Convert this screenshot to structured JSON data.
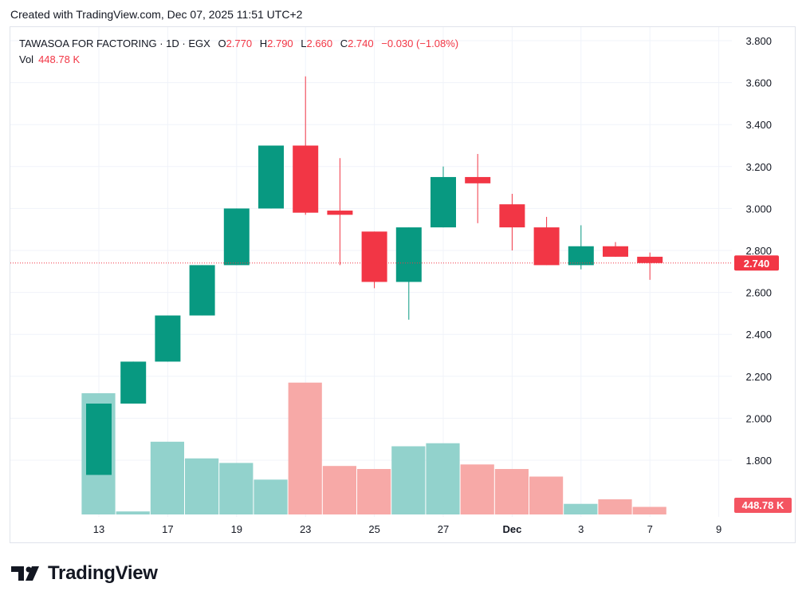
{
  "header": {
    "created_text": "Created with TradingView.com, Dec 07, 2025 11:51 UTC+2"
  },
  "legend": {
    "symbol": "TAWASOA FOR FACTORING · 1D · EGX",
    "open_label": "O",
    "open": "2.770",
    "high_label": "H",
    "high": "2.790",
    "low_label": "L",
    "low": "2.660",
    "close_label": "C",
    "close": "2.740",
    "change": "−0.030 (−1.08%)",
    "vol_label": "Vol",
    "vol_value": "448.78 K"
  },
  "price_badge": "2.740",
  "volume_badge": "448.78 K",
  "footer": {
    "brand": "TradingView"
  },
  "colors": {
    "up": "#089981",
    "down": "#f23645",
    "up_vol": "#92d2cc",
    "down_vol": "#f7a9a7",
    "grid": "#f0f3fa"
  },
  "chart_data": {
    "type": "candlestick",
    "y_ticks": [
      "3.800",
      "3.600",
      "3.400",
      "3.200",
      "3.000",
      "2.800",
      "2.600",
      "2.400",
      "2.200",
      "2.000",
      "1.800"
    ],
    "y_range": [
      1.75,
      3.85
    ],
    "x_ticks": [
      {
        "label": "13",
        "day": 0
      },
      {
        "label": "17",
        "day": 2
      },
      {
        "label": "19",
        "day": 4
      },
      {
        "label": "23",
        "day": 6
      },
      {
        "label": "25",
        "day": 8
      },
      {
        "label": "27",
        "day": 10
      },
      {
        "label": "Dec",
        "day": 12
      },
      {
        "label": "3",
        "day": 14
      },
      {
        "label": "7",
        "day": 16
      },
      {
        "label": "9",
        "day": 18
      }
    ],
    "candles": [
      {
        "day": 0,
        "open": 1.73,
        "high": 2.07,
        "low": 1.73,
        "close": 2.07
      },
      {
        "day": 1,
        "open": 2.07,
        "high": 2.27,
        "low": 2.07,
        "close": 2.27
      },
      {
        "day": 2,
        "open": 2.27,
        "high": 2.49,
        "low": 2.27,
        "close": 2.49
      },
      {
        "day": 3,
        "open": 2.49,
        "high": 2.73,
        "low": 2.49,
        "close": 2.73
      },
      {
        "day": 4,
        "open": 2.73,
        "high": 3.0,
        "low": 2.73,
        "close": 3.0
      },
      {
        "day": 5,
        "open": 3.0,
        "high": 3.3,
        "low": 3.0,
        "close": 3.3
      },
      {
        "day": 6,
        "open": 3.3,
        "high": 3.63,
        "low": 2.97,
        "close": 2.98
      },
      {
        "day": 7,
        "open": 2.99,
        "high": 3.24,
        "low": 2.73,
        "close": 2.97
      },
      {
        "day": 8,
        "open": 2.89,
        "high": 2.89,
        "low": 2.62,
        "close": 2.65
      },
      {
        "day": 9,
        "open": 2.65,
        "high": 2.91,
        "low": 2.47,
        "close": 2.91
      },
      {
        "day": 10,
        "open": 2.91,
        "high": 3.2,
        "low": 2.91,
        "close": 3.15
      },
      {
        "day": 11,
        "open": 3.15,
        "high": 3.26,
        "low": 2.93,
        "close": 3.12
      },
      {
        "day": 12,
        "open": 3.02,
        "high": 3.07,
        "low": 2.8,
        "close": 2.91
      },
      {
        "day": 13,
        "open": 2.91,
        "high": 2.96,
        "low": 2.73,
        "close": 2.73
      },
      {
        "day": 14,
        "open": 2.73,
        "high": 2.92,
        "low": 2.71,
        "close": 2.82
      },
      {
        "day": 15,
        "open": 2.82,
        "high": 2.84,
        "low": 2.77,
        "close": 2.77
      },
      {
        "day": 16,
        "open": 2.77,
        "high": 2.79,
        "low": 2.66,
        "close": 2.74
      }
    ],
    "volume_rel": [
      0.8,
      0.02,
      0.48,
      0.37,
      0.34,
      0.23,
      0.87,
      0.32,
      0.3,
      0.45,
      0.47,
      0.33,
      0.3,
      0.25,
      0.07,
      0.1,
      0.05
    ],
    "last_price": 2.74
  }
}
